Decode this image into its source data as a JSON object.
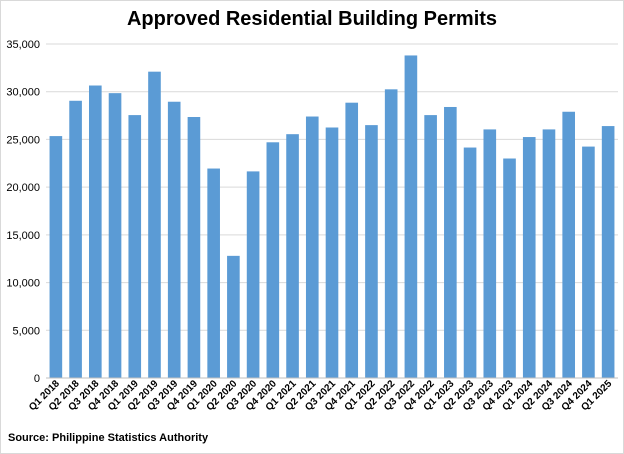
{
  "chart_data": {
    "type": "bar",
    "title": "Approved Residential Building Permits",
    "source": "Source: Philippine Statistics Authority",
    "xlabel": "",
    "ylabel": "",
    "ylim": [
      0,
      35000
    ],
    "yticks": [
      0,
      5000,
      10000,
      15000,
      20000,
      25000,
      30000,
      35000
    ],
    "ytick_labels": [
      "0",
      "5,000",
      "10,000",
      "15,000",
      "20,000",
      "25,000",
      "30,000",
      "35,000"
    ],
    "grid": true,
    "bar_color": "#5b9bd5",
    "grid_color": "#d9d9d9",
    "categories": [
      "Q1 2018",
      "Q2 2018",
      "Q3 2018",
      "Q4 2018",
      "Q1 2019",
      "Q2 2019",
      "Q3 2019",
      "Q4 2019",
      "Q1 2020",
      "Q2 2020",
      "Q3 2020",
      "Q4 2020",
      "Q1 2021",
      "Q2 2021",
      "Q3 2021",
      "Q4 2021",
      "Q1 2022",
      "Q2 2022",
      "Q3 2022",
      "Q4 2022",
      "Q1 2023",
      "Q2 2023",
      "Q3 2023",
      "Q4 2023",
      "Q1 2024",
      "Q2 2024",
      "Q3 2024",
      "Q4 2024",
      "Q1 2025"
    ],
    "values": [
      25350,
      29050,
      30650,
      29850,
      27550,
      32100,
      28950,
      27350,
      21950,
      12800,
      21650,
      24700,
      25550,
      27400,
      26250,
      28850,
      26500,
      30250,
      33800,
      27550,
      28400,
      24150,
      26050,
      23000,
      25250,
      26050,
      27900,
      24250,
      26400
    ]
  }
}
